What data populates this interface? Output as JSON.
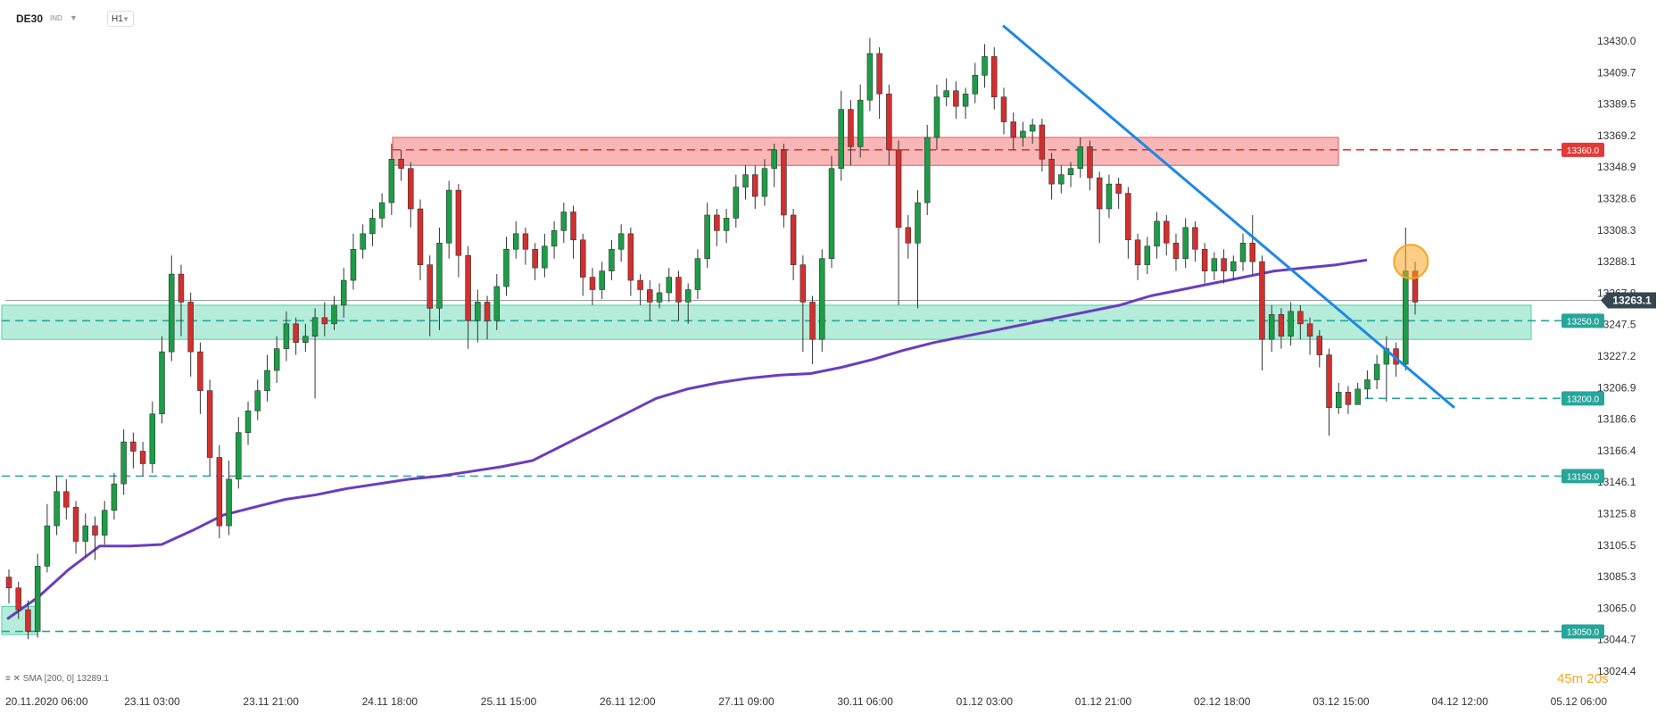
{
  "toolbar": {
    "symbol": "DE30",
    "badge": "IND",
    "timeframe": "H1"
  },
  "sma_legend": "SMA [200, 0]  13289.1",
  "countdown": "45m 20s",
  "price_axis": {
    "ticks": [
      "13430.0",
      "13409.7",
      "13389.5",
      "13369.2",
      "13348.9",
      "13328.6",
      "13308.3",
      "13288.1",
      "13267.8",
      "13247.5",
      "13227.2",
      "13206.9",
      "13186.6",
      "13166.4",
      "13146.1",
      "13125.8",
      "13105.5",
      "13085.3",
      "13065.0",
      "13044.7",
      "13024.4"
    ],
    "current_price": "13263.1",
    "level_labels": [
      "13360.0",
      "13250.0",
      "13200.0",
      "13150.0",
      "13050.0"
    ]
  },
  "time_axis": {
    "labels": [
      "20.11.2020  06:00",
      "23.11  03:00",
      "23.11  21:00",
      "24.11  18:00",
      "25.11  15:00",
      "26.11  12:00",
      "27.11  09:00",
      "30.11  06:00",
      "01.12  03:00",
      "01.12  21:00",
      "02.12  18:00",
      "03.12  15:00",
      "04.12  12:00",
      "05.12  06:00"
    ]
  },
  "chart_data": {
    "type": "candlestick",
    "title": "DE30",
    "timeframe": "H1",
    "ylim": [
      13024.4,
      13430.0
    ],
    "x_range": [
      "20.11.2020 06:00",
      "05.12 06:00"
    ],
    "grid": false,
    "current_price": 13263.1,
    "horizontal_levels": [
      {
        "value": 13360.0,
        "color": "#e53935",
        "style": "dashed"
      },
      {
        "value": 13250.0,
        "color": "#26a69a",
        "style": "dashed"
      },
      {
        "value": 13200.0,
        "color": "#26a69a",
        "style": "dashed"
      },
      {
        "value": 13150.0,
        "color": "#26a69a",
        "style": "dashed"
      },
      {
        "value": 13050.0,
        "color": "#26a69a",
        "style": "dashed"
      }
    ],
    "zones": [
      {
        "name": "resistance",
        "from": 13350,
        "to": 13368,
        "color": "#ef5350"
      },
      {
        "name": "support",
        "from": 13238,
        "to": 13260,
        "color": "#4ed3a7"
      },
      {
        "name": "support-start",
        "from": 13048,
        "to": 13066,
        "color": "#4ed3a7"
      }
    ],
    "trendline": {
      "from": 13440,
      "to": 13194,
      "color": "#1e88e5"
    },
    "sma": {
      "period": 200,
      "last": 13289.1,
      "color": "#6a3dc0",
      "values": [
        13058,
        13072,
        13090,
        13105,
        13105,
        13106,
        13115,
        13125,
        13130,
        13135,
        13138,
        13142,
        13145,
        13148,
        13150,
        13153,
        13156,
        13160,
        13170,
        13180,
        13190,
        13200,
        13206,
        13210,
        13213,
        13215,
        13216,
        13220,
        13225,
        13231,
        13236,
        13240,
        13244,
        13248,
        13252,
        13256,
        13260,
        13266,
        13270,
        13274,
        13278,
        13282,
        13284,
        13286,
        13289.1
      ]
    },
    "colors": {
      "up": "#1b9e46",
      "down": "#d32f2f",
      "highlight": "#f5a623"
    },
    "candles": [
      [
        13085,
        13078,
        13090,
        13068
      ],
      [
        13078,
        13064,
        13082,
        13058
      ],
      [
        13064,
        13050,
        13070,
        13045
      ],
      [
        13050,
        13092,
        13100,
        13046
      ],
      [
        13092,
        13118,
        13132,
        13088
      ],
      [
        13118,
        13140,
        13150,
        13112
      ],
      [
        13140,
        13130,
        13148,
        13122
      ],
      [
        13130,
        13108,
        13134,
        13100
      ],
      [
        13108,
        13118,
        13126,
        13098
      ],
      [
        13118,
        13112,
        13124,
        13096
      ],
      [
        13112,
        13128,
        13134,
        13106
      ],
      [
        13128,
        13145,
        13152,
        13122
      ],
      [
        13145,
        13172,
        13180,
        13138
      ],
      [
        13172,
        13166,
        13178,
        13155
      ],
      [
        13166,
        13158,
        13172,
        13150
      ],
      [
        13158,
        13190,
        13198,
        13152
      ],
      [
        13190,
        13230,
        13240,
        13184
      ],
      [
        13230,
        13280,
        13292,
        13224
      ],
      [
        13280,
        13262,
        13286,
        13240
      ],
      [
        13262,
        13230,
        13268,
        13214
      ],
      [
        13230,
        13205,
        13236,
        13190
      ],
      [
        13205,
        13162,
        13212,
        13150
      ],
      [
        13162,
        13118,
        13170,
        13110
      ],
      [
        13118,
        13148,
        13160,
        13112
      ],
      [
        13148,
        13178,
        13188,
        13142
      ],
      [
        13178,
        13192,
        13198,
        13170
      ],
      [
        13192,
        13205,
        13212,
        13186
      ],
      [
        13205,
        13218,
        13228,
        13198
      ],
      [
        13218,
        13232,
        13240,
        13210
      ],
      [
        13232,
        13248,
        13256,
        13224
      ],
      [
        13248,
        13236,
        13252,
        13228
      ],
      [
        13236,
        13240,
        13248,
        13230
      ],
      [
        13240,
        13252,
        13258,
        13200
      ],
      [
        13252,
        13248,
        13262,
        13240
      ],
      [
        13248,
        13260,
        13266,
        13244
      ],
      [
        13260,
        13276,
        13284,
        13252
      ],
      [
        13276,
        13296,
        13306,
        13270
      ],
      [
        13296,
        13306,
        13312,
        13290
      ],
      [
        13306,
        13316,
        13322,
        13298
      ],
      [
        13316,
        13326,
        13332,
        13310
      ],
      [
        13326,
        13354,
        13364,
        13318
      ],
      [
        13354,
        13348,
        13360,
        13340
      ],
      [
        13348,
        13322,
        13352,
        13310
      ],
      [
        13322,
        13286,
        13328,
        13276
      ],
      [
        13286,
        13258,
        13292,
        13240
      ],
      [
        13258,
        13300,
        13310,
        13244
      ],
      [
        13300,
        13334,
        13340,
        13290
      ],
      [
        13334,
        13292,
        13338,
        13278
      ],
      [
        13292,
        13250,
        13298,
        13232
      ],
      [
        13250,
        13262,
        13270,
        13236
      ],
      [
        13262,
        13250,
        13266,
        13238
      ],
      [
        13250,
        13272,
        13280,
        13244
      ],
      [
        13272,
        13296,
        13304,
        13266
      ],
      [
        13296,
        13306,
        13314,
        13290
      ],
      [
        13306,
        13296,
        13310,
        13286
      ],
      [
        13296,
        13284,
        13300,
        13276
      ],
      [
        13284,
        13298,
        13306,
        13278
      ],
      [
        13298,
        13308,
        13314,
        13290
      ],
      [
        13308,
        13320,
        13326,
        13300
      ],
      [
        13320,
        13302,
        13324,
        13290
      ],
      [
        13302,
        13278,
        13306,
        13266
      ],
      [
        13278,
        13270,
        13284,
        13260
      ],
      [
        13270,
        13282,
        13288,
        13264
      ],
      [
        13282,
        13296,
        13302,
        13276
      ],
      [
        13296,
        13306,
        13312,
        13288
      ],
      [
        13306,
        13276,
        13310,
        13266
      ],
      [
        13276,
        13270,
        13280,
        13260
      ],
      [
        13270,
        13262,
        13276,
        13250
      ],
      [
        13262,
        13268,
        13274,
        13258
      ],
      [
        13268,
        13278,
        13284,
        13262
      ],
      [
        13278,
        13262,
        13282,
        13250
      ],
      [
        13262,
        13270,
        13274,
        13248
      ],
      [
        13270,
        13290,
        13296,
        13264
      ],
      [
        13290,
        13318,
        13326,
        13284
      ],
      [
        13318,
        13308,
        13322,
        13298
      ],
      [
        13308,
        13316,
        13322,
        13300
      ],
      [
        13316,
        13336,
        13344,
        13310
      ],
      [
        13336,
        13344,
        13350,
        13328
      ],
      [
        13344,
        13330,
        13350,
        13322
      ],
      [
        13330,
        13348,
        13354,
        13324
      ],
      [
        13348,
        13360,
        13364,
        13336
      ],
      [
        13360,
        13318,
        13364,
        13310
      ],
      [
        13318,
        13286,
        13322,
        13276
      ],
      [
        13286,
        13262,
        13292,
        13230
      ],
      [
        13262,
        13238,
        13266,
        13222
      ],
      [
        13238,
        13290,
        13296,
        13230
      ],
      [
        13290,
        13348,
        13356,
        13284
      ],
      [
        13348,
        13386,
        13398,
        13340
      ],
      [
        13386,
        13362,
        13392,
        13350
      ],
      [
        13362,
        13392,
        13402,
        13355
      ],
      [
        13392,
        13422,
        13432,
        13385
      ],
      [
        13422,
        13396,
        13426,
        13380
      ],
      [
        13396,
        13360,
        13402,
        13350
      ],
      [
        13360,
        13310,
        13366,
        13260
      ],
      [
        13310,
        13300,
        13318,
        13290
      ],
      [
        13300,
        13326,
        13334,
        13258
      ],
      [
        13326,
        13368,
        13376,
        13318
      ],
      [
        13368,
        13394,
        13402,
        13360
      ],
      [
        13394,
        13398,
        13406,
        13388
      ],
      [
        13398,
        13388,
        13404,
        13380
      ],
      [
        13388,
        13396,
        13400,
        13380
      ],
      [
        13396,
        13408,
        13416,
        13390
      ],
      [
        13408,
        13420,
        13428,
        13400
      ],
      [
        13420,
        13394,
        13426,
        13386
      ],
      [
        13394,
        13378,
        13400,
        13370
      ],
      [
        13378,
        13368,
        13384,
        13360
      ],
      [
        13368,
        13372,
        13378,
        13362
      ],
      [
        13372,
        13376,
        13380,
        13364
      ],
      [
        13376,
        13354,
        13380,
        13346
      ],
      [
        13354,
        13338,
        13358,
        13328
      ],
      [
        13338,
        13344,
        13350,
        13332
      ],
      [
        13344,
        13348,
        13352,
        13336
      ],
      [
        13348,
        13362,
        13368,
        13342
      ],
      [
        13362,
        13342,
        13366,
        13334
      ],
      [
        13342,
        13322,
        13346,
        13300
      ],
      [
        13322,
        13338,
        13344,
        13316
      ],
      [
        13338,
        13332,
        13342,
        13322
      ],
      [
        13332,
        13302,
        13336,
        13290
      ],
      [
        13302,
        13286,
        13306,
        13276
      ],
      [
        13286,
        13298,
        13304,
        13280
      ],
      [
        13298,
        13314,
        13320,
        13290
      ],
      [
        13314,
        13300,
        13318,
        13292
      ],
      [
        13300,
        13290,
        13306,
        13282
      ],
      [
        13290,
        13310,
        13316,
        13284
      ],
      [
        13310,
        13296,
        13314,
        13288
      ],
      [
        13296,
        13282,
        13300,
        13274
      ],
      [
        13282,
        13290,
        13294,
        13276
      ],
      [
        13290,
        13282,
        13296,
        13274
      ],
      [
        13282,
        13288,
        13292,
        13276
      ],
      [
        13288,
        13300,
        13306,
        13282
      ],
      [
        13300,
        13288,
        13318,
        13280
      ],
      [
        13288,
        13238,
        13292,
        13218
      ],
      [
        13238,
        13254,
        13260,
        13230
      ],
      [
        13254,
        13240,
        13258,
        13232
      ],
      [
        13240,
        13256,
        13262,
        13234
      ],
      [
        13256,
        13248,
        13260,
        13238
      ],
      [
        13248,
        13240,
        13252,
        13228
      ],
      [
        13240,
        13228,
        13244,
        13220
      ],
      [
        13228,
        13194,
        13232,
        13176
      ],
      [
        13194,
        13204,
        13210,
        13190
      ],
      [
        13204,
        13196,
        13208,
        13190
      ],
      [
        13196,
        13206,
        13210,
        13196
      ],
      [
        13206,
        13212,
        13218,
        13200
      ],
      [
        13212,
        13222,
        13228,
        13206
      ],
      [
        13222,
        13232,
        13240,
        13198
      ],
      [
        13232,
        13222,
        13236,
        13214
      ],
      [
        13222,
        13282,
        13310,
        13218
      ],
      [
        13282,
        13262,
        13288,
        13254
      ]
    ]
  }
}
